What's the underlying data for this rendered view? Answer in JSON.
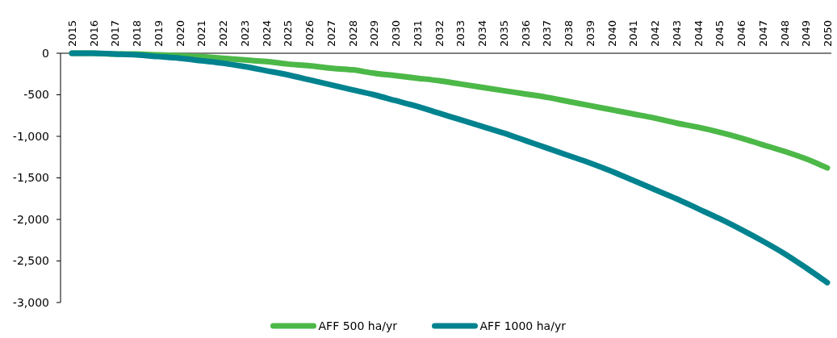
{
  "chart_data": {
    "type": "line",
    "categories": [
      "2015",
      "2016",
      "2017",
      "2018",
      "2019",
      "2020",
      "2021",
      "2022",
      "2023",
      "2024",
      "2025",
      "2026",
      "2027",
      "2028",
      "2029",
      "2030",
      "2031",
      "2032",
      "2033",
      "2034",
      "2035",
      "2036",
      "2037",
      "2038",
      "2039",
      "2040",
      "2041",
      "2042",
      "2043",
      "2044",
      "2045",
      "2046",
      "2047",
      "2048",
      "2049",
      "2050"
    ],
    "series": [
      {
        "name": "AFF 500 ha/yr",
        "color": "#4cb848",
        "values": [
          0,
          0,
          -10,
          -10,
          -20,
          -30,
          -40,
          -60,
          -80,
          -100,
          -130,
          -150,
          -180,
          -200,
          -240,
          -270,
          -300,
          -330,
          -370,
          -410,
          -450,
          -490,
          -530,
          -580,
          -630,
          -680,
          -730,
          -780,
          -840,
          -890,
          -950,
          -1020,
          -1100,
          -1180,
          -1270,
          -1380
        ]
      },
      {
        "name": "AFF 1000 ha/yr",
        "color": "#00838f",
        "values": [
          0,
          0,
          -10,
          -20,
          -40,
          -60,
          -90,
          -120,
          -160,
          -210,
          -260,
          -320,
          -380,
          -440,
          -500,
          -570,
          -640,
          -720,
          -800,
          -880,
          -960,
          -1050,
          -1140,
          -1230,
          -1320,
          -1420,
          -1530,
          -1640,
          -1750,
          -1870,
          -1990,
          -2120,
          -2260,
          -2410,
          -2580,
          -2760
        ]
      }
    ],
    "ylim": [
      -3000,
      0
    ],
    "yticks": [
      0,
      -500,
      {
        "value": -1000,
        "label": "-1,000"
      },
      {
        "value": -1500,
        "label": "-1,500"
      },
      {
        "value": -2000,
        "label": "-2,000"
      },
      {
        "value": -2500,
        "label": "-2,500"
      },
      {
        "value": -3000,
        "label": "-3,000"
      }
    ],
    "grid": false,
    "legend": "bottom",
    "line_style": "solid"
  }
}
